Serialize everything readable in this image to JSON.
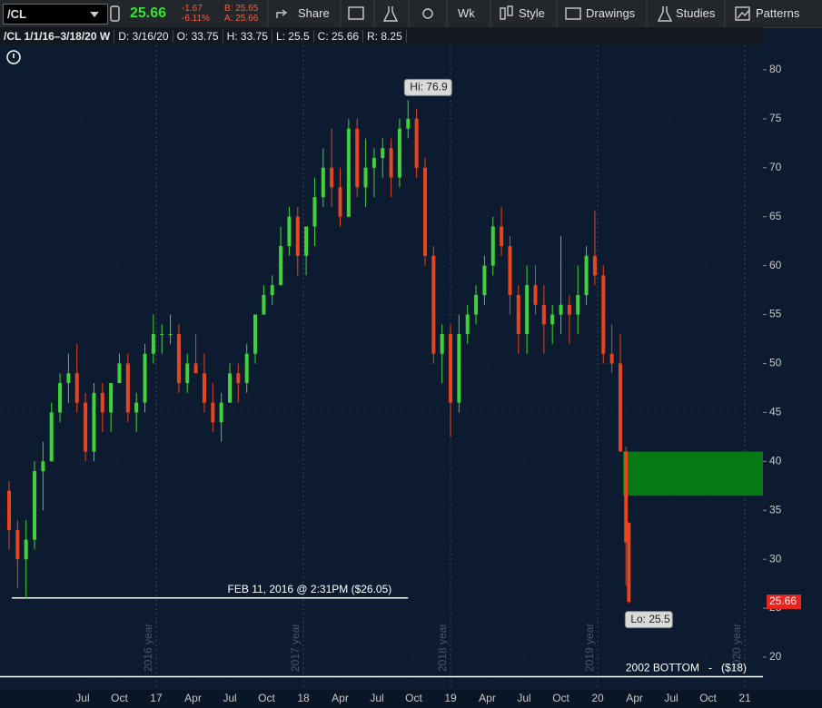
{
  "toolbar": {
    "symbol": "/CL",
    "last": "25.66",
    "change": "-1.67",
    "change_pct": "-6.11%",
    "bid": "B: 25.65",
    "ask": "A: 25.66",
    "buttons": [
      "Share",
      "Wk",
      "Style",
      "Drawings",
      "Studies",
      "Patterns"
    ]
  },
  "infobar": [
    "/CL 1/1/16–3/18/20 W",
    "D: 3/16/20",
    "O: 33.75",
    "H: 33.75",
    "L: 25.5",
    "C: 25.66",
    "R: 8.25"
  ],
  "chart_data": {
    "type": "candlestick",
    "up_color": "#3fd33a",
    "down_color": "#e8451e",
    "grid": true,
    "x": [
      0,
      3,
      6,
      9,
      12,
      15,
      18,
      21,
      24,
      27,
      30,
      33,
      36,
      39,
      42,
      45,
      48,
      51,
      54,
      57,
      60,
      63,
      66,
      69,
      72,
      75,
      78,
      81,
      84,
      87,
      90,
      93,
      96,
      99,
      102,
      105,
      108,
      111,
      114,
      117,
      120,
      123,
      126,
      129,
      132,
      135,
      138,
      141,
      144,
      147,
      150,
      153,
      156,
      159,
      162,
      165,
      168,
      171,
      174,
      177,
      180,
      183,
      186,
      189,
      192,
      195,
      198,
      201,
      204,
      207,
      210,
      213,
      216,
      218,
      219
    ],
    "open": [
      37,
      33,
      30,
      32,
      39,
      40,
      45,
      48,
      49,
      46,
      41,
      47,
      45,
      48,
      50,
      45,
      46,
      51,
      53,
      53,
      53,
      48,
      50,
      49,
      46,
      44,
      46,
      49,
      48,
      51,
      55,
      57,
      58,
      62,
      65,
      61,
      64,
      67,
      70,
      68,
      65,
      74,
      68,
      70,
      71,
      72,
      69,
      74,
      75,
      70,
      61,
      51,
      53,
      46,
      53,
      55,
      57,
      60,
      64,
      62,
      57,
      53,
      58,
      56,
      54,
      55,
      56,
      55,
      57,
      61,
      59,
      51,
      50,
      41,
      33.75
    ],
    "high": [
      38,
      34,
      34,
      40,
      42,
      46,
      49,
      51,
      52,
      47,
      48,
      48,
      48,
      51,
      51,
      47,
      52,
      55,
      54,
      55,
      54,
      51,
      53,
      51,
      48,
      47,
      50,
      50,
      52,
      55,
      58,
      59,
      64,
      66,
      66,
      64,
      69,
      72,
      74,
      70,
      75,
      75,
      73,
      72,
      73,
      73,
      75,
      76.9,
      76,
      71,
      62,
      54,
      54,
      55,
      56,
      58,
      61,
      65,
      66,
      63,
      58,
      60,
      60,
      58,
      56,
      63,
      57,
      60,
      62,
      65.6,
      60,
      54,
      53,
      41.5,
      33.75
    ],
    "low": [
      31,
      27,
      26.05,
      31,
      35,
      40,
      44,
      46,
      45,
      40,
      40,
      43,
      43,
      48,
      44,
      43,
      45,
      50,
      51,
      52,
      47,
      47,
      49,
      45,
      43,
      42,
      46,
      46,
      47,
      50,
      55,
      56,
      58,
      61,
      59,
      59,
      62,
      66,
      66,
      64,
      65,
      67,
      66,
      67,
      69,
      67,
      68,
      73,
      69,
      60,
      50,
      48,
      42.5,
      45,
      52,
      54,
      56,
      59,
      61,
      55,
      51,
      51,
      55,
      51,
      52,
      53,
      52,
      53,
      56,
      58,
      50,
      49,
      41,
      27.3,
      25.5
    ],
    "close": [
      33,
      30,
      32,
      39,
      40,
      45,
      48,
      49,
      46,
      41,
      47,
      45,
      48,
      50,
      45,
      46,
      51,
      53,
      53,
      53,
      48,
      50,
      49,
      46,
      44,
      46,
      49,
      48,
      51,
      55,
      57,
      58,
      62,
      65,
      61,
      64,
      67,
      70,
      68,
      65,
      74,
      68,
      70,
      71,
      72,
      69,
      74,
      75,
      70,
      61,
      51,
      53,
      46,
      53,
      55,
      57,
      60,
      64,
      62,
      57,
      53,
      58,
      56,
      54,
      55,
      56,
      55,
      57,
      61,
      59,
      51,
      50,
      41,
      31.7,
      25.66
    ],
    "xlim": [
      -3.2,
      266.4
    ],
    "ylim": [
      16.66,
      82.5
    ],
    "yticks": [
      20,
      25,
      30,
      35,
      40,
      45,
      50,
      55,
      60,
      65,
      70,
      75,
      80
    ],
    "xticks": [
      {
        "value": 26,
        "label": "Jul"
      },
      {
        "value": 39,
        "label": "Oct"
      },
      {
        "value": 52,
        "label": "17"
      },
      {
        "value": 65,
        "label": "Apr"
      },
      {
        "value": 78,
        "label": "Jul"
      },
      {
        "value": 91,
        "label": "Oct"
      },
      {
        "value": 104,
        "label": "18"
      },
      {
        "value": 117,
        "label": "Apr"
      },
      {
        "value": 130,
        "label": "Jul"
      },
      {
        "value": 143,
        "label": "Oct"
      },
      {
        "value": 156,
        "label": "19"
      },
      {
        "value": 169,
        "label": "Apr"
      },
      {
        "value": 182,
        "label": "Jul"
      },
      {
        "value": 195,
        "label": "Oct"
      },
      {
        "value": 208,
        "label": "20"
      },
      {
        "value": 221,
        "label": "Apr"
      },
      {
        "value": 234,
        "label": "Jul"
      },
      {
        "value": 247,
        "label": "Oct"
      },
      {
        "value": 260,
        "label": "21"
      }
    ],
    "year_markers": [
      {
        "value": 52,
        "label": "2016 year"
      },
      {
        "value": 104,
        "label": "2017 year"
      },
      {
        "value": 156,
        "label": "2018 year"
      },
      {
        "value": 208,
        "label": "2019 year"
      },
      {
        "value": 260,
        "label": "2020 year"
      }
    ],
    "high_label": {
      "x": 141,
      "value": 76.9,
      "label": "Hi: 76.9"
    },
    "low_label": {
      "x": 219,
      "value": 25.5,
      "label": "Lo: 25.5"
    },
    "last_price": {
      "value": 25.66,
      "label": "25.66"
    },
    "zone": {
      "x": 217,
      "ymin": 36.5,
      "ymax": 41
    },
    "level_lines": [
      {
        "x": [
          1,
          141
        ],
        "value": 26.05,
        "label": "FEB 11, 2016 @ 2:31PM ($26.05)"
      },
      {
        "x": [
          -3.2,
          266.4
        ],
        "value": 18,
        "label": "2002 BOTTOM   -   ($18)"
      }
    ]
  }
}
